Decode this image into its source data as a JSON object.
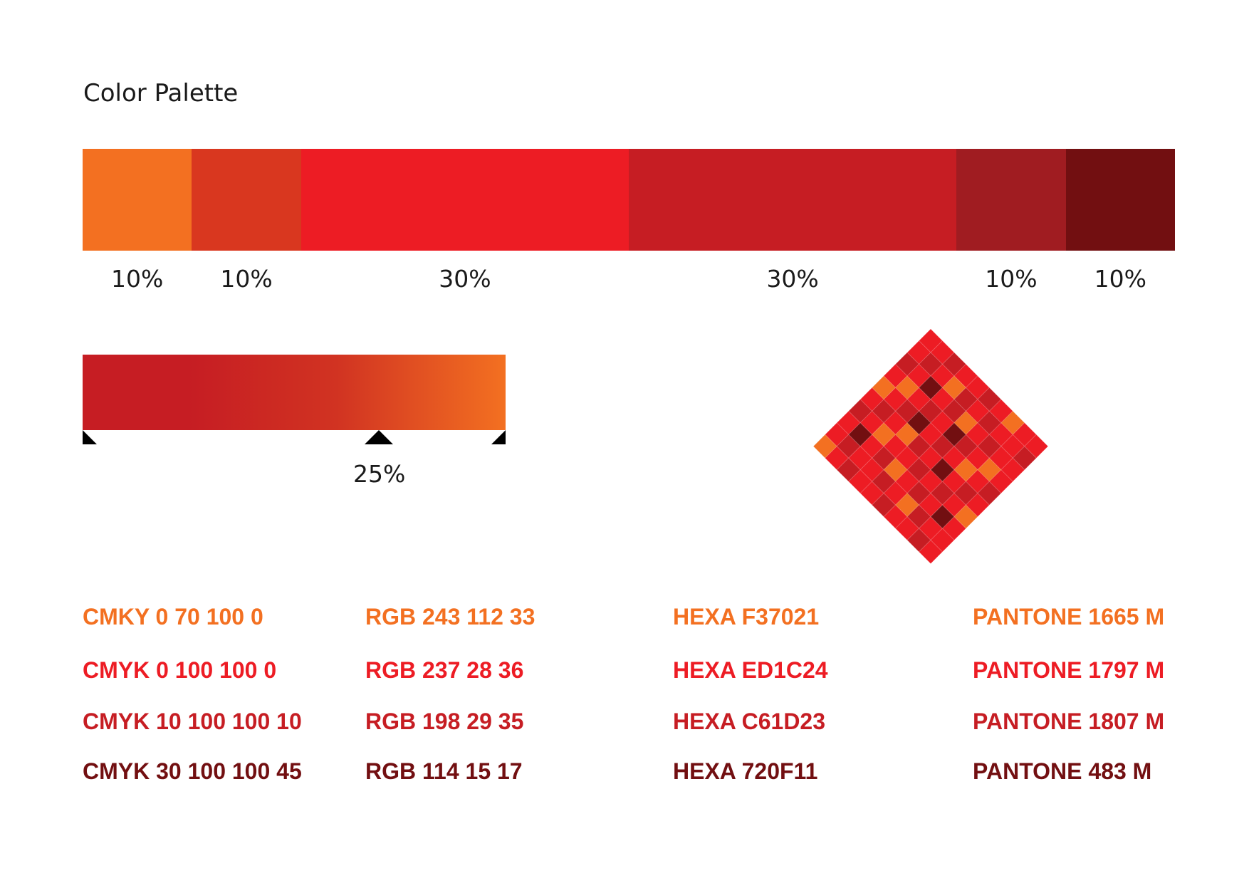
{
  "title": "Color Palette",
  "palette": {
    "segments": [
      {
        "color": "#F37021",
        "percent": "10%",
        "share": 10
      },
      {
        "color": "#D9371F",
        "percent": "10%",
        "share": 10
      },
      {
        "color": "#ED1C24",
        "percent": "30%",
        "share": 30
      },
      {
        "color": "#C61D23",
        "percent": "30%",
        "share": 30
      },
      {
        "color": "#A01C21",
        "percent": "10%",
        "share": 10
      },
      {
        "color": "#720F11",
        "percent": "10%",
        "share": 10
      }
    ]
  },
  "gradient": {
    "colors": [
      "#C61D23",
      "#C61D23",
      "#D13322",
      "#F37021"
    ],
    "midpoint_label": "25%"
  },
  "pattern_colors": [
    "#ED1C24",
    "#C61D23",
    "#F37021",
    "#720F11",
    "#D9371F"
  ],
  "specs": [
    {
      "color": "#F37021",
      "cmyk": "CMKY 0 70 100 0",
      "rgb": "RGB 243 112 33",
      "hex": "HEXA F37021",
      "pantone": "PANTONE 1665 M"
    },
    {
      "color": "#ED1C24",
      "cmyk": "CMYK 0 100 100 0",
      "rgb": "RGB 237 28 36",
      "hex": "HEXA ED1C24",
      "pantone": "PANTONE 1797 M"
    },
    {
      "color": "#C61D23",
      "cmyk": "CMYK 10 100 100 10",
      "rgb": "RGB 198 29 35",
      "hex": "HEXA C61D23",
      "pantone": "PANTONE 1807 M"
    },
    {
      "color": "#720F11",
      "cmyk": "CMYK 30 100 100 45",
      "rgb": "RGB 114 15 17",
      "hex": "HEXA 720F11",
      "pantone": "PANTONE 483 M"
    }
  ]
}
